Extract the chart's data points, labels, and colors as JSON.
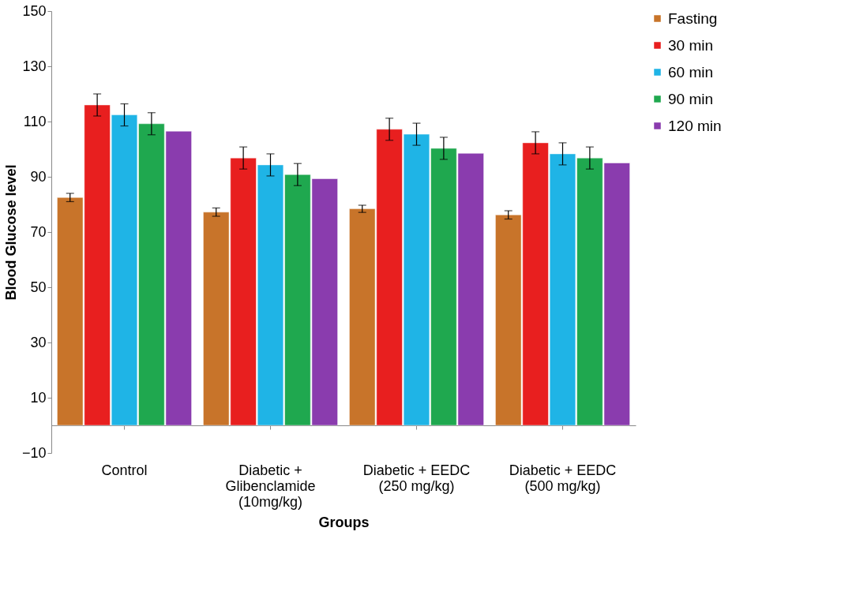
{
  "chart_data": {
    "type": "bar",
    "xlabel": "Groups",
    "ylabel": "Blood Glucose level",
    "categories": [
      "Control",
      "Diabetic + Glibenclamide (10mg/kg)",
      "Diabetic + EEDC (250 mg/kg)",
      "Diabetic + EEDC (500 mg/kg)"
    ],
    "series": [
      {
        "name": "Fasting",
        "color": "#c8742a",
        "values": [
          82.5,
          77.2,
          78.4,
          76.2
        ],
        "errors": [
          1.5,
          1.5,
          1.3,
          1.5
        ]
      },
      {
        "name": "30 min",
        "color": "#e81f1f",
        "values": [
          116,
          96.8,
          107.2,
          102.3
        ],
        "errors": [
          4,
          4,
          4,
          4
        ]
      },
      {
        "name": "60 min",
        "color": "#1fb4e6",
        "values": [
          112.4,
          94.3,
          105.4,
          98.3
        ],
        "errors": [
          4,
          4,
          4,
          4
        ]
      },
      {
        "name": "90 min",
        "color": "#1fa84f",
        "values": [
          109.2,
          90.8,
          100.3,
          96.8
        ],
        "errors": [
          4,
          4,
          4,
          4
        ]
      },
      {
        "name": "120 min",
        "color": "#8a3cae",
        "values": [
          106.5,
          89.3,
          98.5,
          95
        ],
        "errors": [
          null,
          null,
          null,
          null
        ]
      }
    ],
    "ylim": [
      -10,
      150
    ],
    "yticks": [
      -10,
      10,
      30,
      50,
      70,
      90,
      110,
      130,
      150
    ],
    "grid": false,
    "legend": "right"
  }
}
